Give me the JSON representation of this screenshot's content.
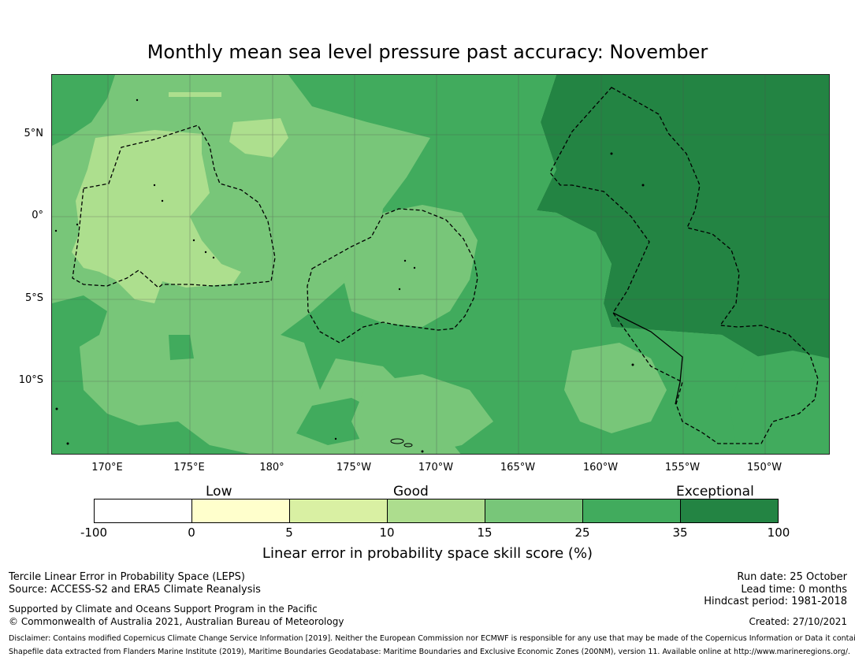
{
  "title": "Monthly mean sea level pressure past accuracy: November",
  "map": {
    "lat_labels": [
      "5°N",
      "0°",
      "5°S",
      "10°S"
    ],
    "lon_labels": [
      "170°E",
      "175°E",
      "180°",
      "175°W",
      "170°W",
      "165°W",
      "160°W",
      "155°W",
      "150°W"
    ],
    "colors": {
      "ocean_light": "#addf8e",
      "ocean_mid": "#78c679",
      "ocean_green": "#41ab5d",
      "ocean_dark": "#238443",
      "boundary": "#000000"
    }
  },
  "legend": {
    "categories": [
      "Low",
      "Good",
      "Exceptional"
    ],
    "ticks": [
      "-100",
      "0",
      "5",
      "10",
      "15",
      "25",
      "35",
      "100"
    ],
    "colors": [
      "#ffffff",
      "#ffffcc",
      "#d9f0a3",
      "#addd8e",
      "#78c679",
      "#41ab5d",
      "#238443"
    ],
    "label": "Linear error in probability space skill score (%)"
  },
  "info": {
    "left1": "Tercile Linear Error in Probability Space (LEPS)",
    "left2": "Source: ACCESS-S2 and ERA5 Climate Reanalysis",
    "left3": "Supported by Climate and Oceans Support Program in the Pacific",
    "left4": "© Commonwealth of Australia 2021, Australian Bureau of Meteorology",
    "right1": "Run date: 25 October",
    "right2": "Lead time: 0 months",
    "right3": "Hindcast period: 1981-2018",
    "right4": "Created: 27/10/2021"
  },
  "disclaimer": {
    "line1": "Disclaimer: Contains modified Copernicus Climate Change Service Information [2019]. Neither the European Commission nor ECMWF is responsible for any use that may be made of the Copernicus Information or Data it contains.",
    "line2": "Shapefile data extracted from Flanders Marine Institute (2019), Maritime Boundaries Geodatabase: Maritime Boundaries and Exclusive Economic Zones (200NM), version 11. Available online at http://www.marineregions.org/."
  }
}
